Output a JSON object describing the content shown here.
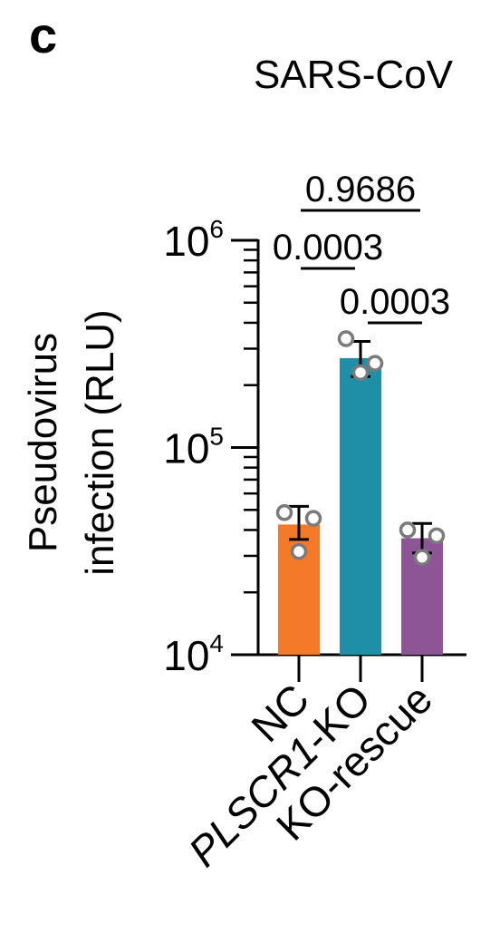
{
  "panel_label": "c",
  "chart_data": {
    "type": "bar",
    "title": "SARS-CoV",
    "ylabel": [
      "Pseudovirus",
      "infection (RLU)"
    ],
    "xlabel": "",
    "yscale": "log",
    "ylim": [
      10000,
      1000000
    ],
    "yticks": [
      {
        "value": 10000,
        "base": "10",
        "exp": "4"
      },
      {
        "value": 100000,
        "base": "10",
        "exp": "5"
      },
      {
        "value": 1000000,
        "base": "10",
        "exp": "6"
      }
    ],
    "categories": [
      {
        "label": "NC",
        "italic": false
      },
      {
        "label": "PLSCR1-KO",
        "italic": true,
        "italic_part": "PLSCR1",
        "rest": "-KO"
      },
      {
        "label": "KO-rescue",
        "italic": false
      }
    ],
    "values": [
      42500,
      270000,
      36500
    ],
    "errors": [
      [
        36000,
        52000
      ],
      [
        220000,
        325000
      ],
      [
        31000,
        43000
      ]
    ],
    "points": [
      [
        48500,
        31500,
        45500
      ],
      [
        335000,
        230000,
        255000
      ],
      [
        40000,
        29500,
        37500
      ]
    ],
    "colors": [
      "#F47A2A",
      "#1F8FA8",
      "#8E5596"
    ],
    "point_color": "#7A7A7A",
    "comparisons": [
      {
        "from": 0,
        "to": 1,
        "pvalue": "0.0003",
        "level": 1
      },
      {
        "from": 1,
        "to": 2,
        "pvalue": "0.0003",
        "level": 0
      },
      {
        "from": 0,
        "to": 2,
        "pvalue": "0.9686",
        "level": 2
      }
    ]
  }
}
